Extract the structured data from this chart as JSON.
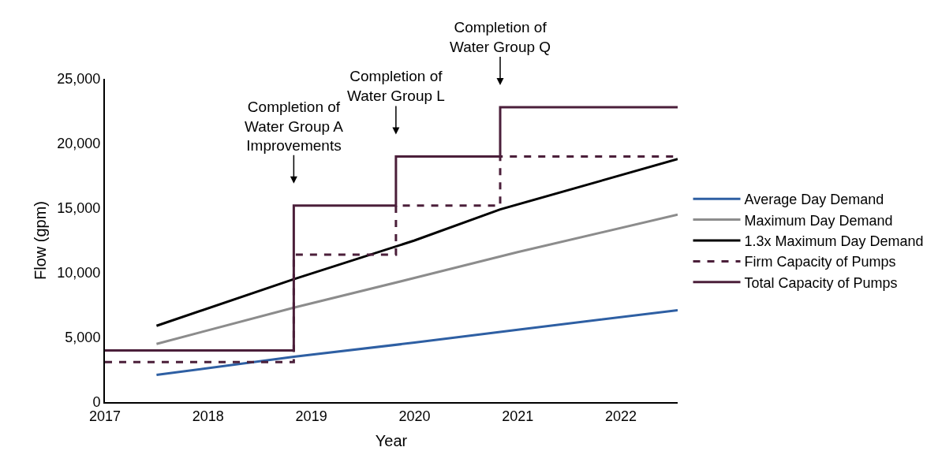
{
  "chart_data": {
    "type": "line",
    "xlabel": "Year",
    "ylabel": "Flow (gpm)",
    "xlim": [
      2017,
      2022.55
    ],
    "xticks": [
      2017,
      2018,
      2019,
      2020,
      2021,
      2022
    ],
    "ylim": [
      0,
      25000
    ],
    "yticks": [
      {
        "value": 0,
        "label": "0"
      },
      {
        "value": 5000,
        "label": "5,000"
      },
      {
        "value": 10000,
        "label": "10,000"
      },
      {
        "value": 15000,
        "label": "15,000"
      },
      {
        "value": 20000,
        "label": "20,000"
      },
      {
        "value": 25000,
        "label": "25,000"
      }
    ],
    "legend": "right",
    "marker": "none",
    "series": [
      {
        "name": "Average Day Demand",
        "color": "#2e5fa3",
        "line_style": "solid",
        "x": [
          2017.5,
          2018.83,
          2020,
          2021,
          2022.55
        ],
        "values": [
          2100,
          3500,
          4600,
          5600,
          7100
        ]
      },
      {
        "name": "Maximum Day Demand",
        "color": "#8c8c8c",
        "line_style": "solid",
        "x": [
          2017.5,
          2018.83,
          2020,
          2021,
          2022.55
        ],
        "values": [
          4500,
          7300,
          9600,
          11600,
          14500
        ]
      },
      {
        "name": "1.3x Maximum Day Demand",
        "color": "#000000",
        "line_style": "solid",
        "x": [
          2017.5,
          2018.83,
          2020,
          2020.83,
          2022.55
        ],
        "values": [
          5900,
          9500,
          12500,
          14900,
          18800
        ]
      },
      {
        "name": "Firm Capacity of Pumps",
        "color": "#4b1f3a",
        "type": "step",
        "line_style": "dashed",
        "x": [
          2017,
          2018.83,
          2019.82,
          2020.83,
          2022.55
        ],
        "values": [
          3100,
          11400,
          15200,
          19000,
          19000
        ]
      },
      {
        "name": "Total Capacity of Pumps",
        "color": "#4b1f3a",
        "type": "step",
        "line_style": "solid",
        "x": [
          2017,
          2018.83,
          2019.82,
          2020.83,
          2022.55
        ],
        "values": [
          4000,
          15200,
          19000,
          22800,
          22800
        ]
      }
    ],
    "annotations": [
      "Completion of\nWater Group A\nImprovements",
      "Completion of\nWater Group L",
      "Completion of\nWater Group Q"
    ]
  }
}
